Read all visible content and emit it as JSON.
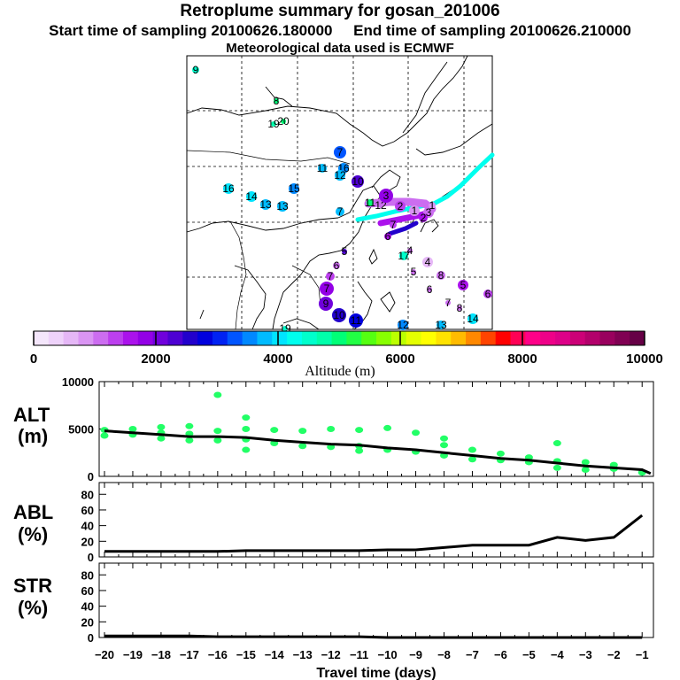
{
  "title": "Retroplume summary for gosan_201006",
  "start_label": "Start time of sampling 20100626.180000",
  "end_label": "End time of sampling 20100626.210000",
  "met_label": "Meteorological data used is ECMWF",
  "map_labels": [
    "9",
    "8",
    "19",
    "20",
    "7",
    "11",
    "16",
    "12",
    "16",
    "15",
    "14",
    "13",
    "13",
    "7",
    "10",
    "11",
    "12",
    "3",
    "2",
    "1",
    "3",
    "1",
    "2",
    "6",
    "7",
    "5",
    "7",
    "6",
    "4",
    "17",
    "4",
    "5",
    "8",
    "6",
    "5",
    "6",
    "7",
    "7",
    "8",
    "9",
    "10",
    "12",
    "13",
    "14",
    "11",
    "19"
  ],
  "colorbar": {
    "ticks": [
      "0",
      "2000",
      "4000",
      "6000",
      "8000",
      "10000"
    ],
    "label": "Altitude (m)",
    "colors": [
      "#f4e6fb",
      "#eed2fa",
      "#e5b7f6",
      "#da95f3",
      "#cc6df0",
      "#bc3fee",
      "#ab12ec",
      "#9300e6",
      "#7000dc",
      "#4d00d2",
      "#2200cc",
      "#0000dd",
      "#0022f2",
      "#0055ff",
      "#0088ff",
      "#00bbff",
      "#00e4ff",
      "#00ffee",
      "#00ffcc",
      "#00ffaa",
      "#00ff77",
      "#22ff44",
      "#55ff11",
      "#88ff00",
      "#bbff00",
      "#e4ff00",
      "#ffff00",
      "#ffe200",
      "#ffbb00",
      "#ff8800",
      "#ff4400",
      "#ff0000",
      "#ff0055",
      "#ff0088",
      "#ee0088",
      "#dd0088",
      "#cc0077",
      "#b3006b",
      "#99005e",
      "#800053",
      "#660046"
    ]
  },
  "chart_data": [
    {
      "type": "line",
      "name": "ALT",
      "title": "ALT",
      "ylabel": "(m)",
      "ylim": [
        0,
        10000
      ],
      "yticks": [
        "0",
        "5000",
        "10000"
      ],
      "x": [
        -20,
        -19,
        -18,
        -17,
        -16,
        -15,
        -14,
        -13,
        -12,
        -11,
        -10,
        -9,
        -8,
        -7,
        -6,
        -5,
        -4,
        -3,
        -2,
        -1,
        -0.7
      ],
      "series": [
        {
          "name": "median altitude",
          "values": [
            4800,
            4600,
            4400,
            4200,
            4200,
            4100,
            3800,
            3600,
            3400,
            3300,
            3000,
            2800,
            2500,
            2200,
            1900,
            1700,
            1400,
            1100,
            900,
            700,
            300
          ]
        }
      ],
      "scatter": [
        {
          "x": -20,
          "y": 4900
        },
        {
          "x": -20,
          "y": 4300
        },
        {
          "x": -19,
          "y": 5000
        },
        {
          "x": -19,
          "y": 4400
        },
        {
          "x": -18,
          "y": 5200
        },
        {
          "x": -18,
          "y": 4600
        },
        {
          "x": -18,
          "y": 4000
        },
        {
          "x": -17,
          "y": 5300
        },
        {
          "x": -17,
          "y": 4500
        },
        {
          "x": -17,
          "y": 3800
        },
        {
          "x": -16,
          "y": 8600
        },
        {
          "x": -16,
          "y": 4800
        },
        {
          "x": -16,
          "y": 3800
        },
        {
          "x": -15,
          "y": 6200
        },
        {
          "x": -15,
          "y": 5000
        },
        {
          "x": -15,
          "y": 3900
        },
        {
          "x": -15,
          "y": 2800
        },
        {
          "x": -14,
          "y": 4900
        },
        {
          "x": -14,
          "y": 3500
        },
        {
          "x": -13,
          "y": 4800
        },
        {
          "x": -13,
          "y": 3200
        },
        {
          "x": -12,
          "y": 5000
        },
        {
          "x": -12,
          "y": 3100
        },
        {
          "x": -11,
          "y": 4900
        },
        {
          "x": -11,
          "y": 3200
        },
        {
          "x": -11,
          "y": 2700
        },
        {
          "x": -10,
          "y": 5100
        },
        {
          "x": -10,
          "y": 2800
        },
        {
          "x": -9,
          "y": 4600
        },
        {
          "x": -9,
          "y": 2600
        },
        {
          "x": -8,
          "y": 4000
        },
        {
          "x": -8,
          "y": 3300
        },
        {
          "x": -8,
          "y": 2200
        },
        {
          "x": -7,
          "y": 2800
        },
        {
          "x": -7,
          "y": 1800
        },
        {
          "x": -6,
          "y": 2400
        },
        {
          "x": -6,
          "y": 1700
        },
        {
          "x": -5,
          "y": 2000
        },
        {
          "x": -5,
          "y": 1500
        },
        {
          "x": -4,
          "y": 3500
        },
        {
          "x": -4,
          "y": 1600
        },
        {
          "x": -4,
          "y": 900
        },
        {
          "x": -3,
          "y": 1500
        },
        {
          "x": -3,
          "y": 700
        },
        {
          "x": -2,
          "y": 1200
        },
        {
          "x": -2,
          "y": 800
        },
        {
          "x": -1,
          "y": 400
        }
      ]
    },
    {
      "type": "line",
      "name": "ABL",
      "title": "ABL",
      "ylabel": "(%)",
      "ylim": [
        0,
        95
      ],
      "yticks": [
        "0",
        "20",
        "40",
        "60",
        "80"
      ],
      "x": [
        -20,
        -19,
        -18,
        -17,
        -16,
        -15,
        -14,
        -13,
        -12,
        -11,
        -10,
        -9,
        -8,
        -7,
        -6,
        -5,
        -4,
        -3,
        -2,
        -1
      ],
      "series": [
        {
          "name": "ABL fraction",
          "values": [
            7,
            7,
            7,
            7,
            7,
            8,
            8,
            8,
            8,
            8,
            9,
            9,
            12,
            15,
            15,
            15,
            25,
            21,
            25,
            53
          ]
        }
      ]
    },
    {
      "type": "line",
      "name": "STR",
      "title": "STR",
      "ylabel": "(%)",
      "ylim": [
        0,
        95
      ],
      "yticks": [
        "0",
        "20",
        "40",
        "60",
        "80"
      ],
      "xlabel": "Travel time (days)",
      "xticks": [
        "−20",
        "−19",
        "−18",
        "−17",
        "−16",
        "−15",
        "−14",
        "−13",
        "−12",
        "−11",
        "−10",
        "−9",
        "−8",
        "−7",
        "−6",
        "−5",
        "−4",
        "−3",
        "−2",
        "−1"
      ],
      "x": [
        -20,
        -19,
        -18,
        -17,
        -16,
        -15,
        -14,
        -13,
        -12,
        -11,
        -10,
        -9,
        -8,
        -7,
        -6,
        -5,
        -4,
        -3,
        -2,
        -1
      ],
      "series": [
        {
          "name": "stratosphere fraction",
          "values": [
            2,
            2,
            2,
            2,
            1,
            1,
            1,
            1,
            1,
            1,
            0,
            0,
            0,
            0,
            0,
            0,
            0,
            0,
            0,
            0
          ]
        }
      ]
    }
  ]
}
